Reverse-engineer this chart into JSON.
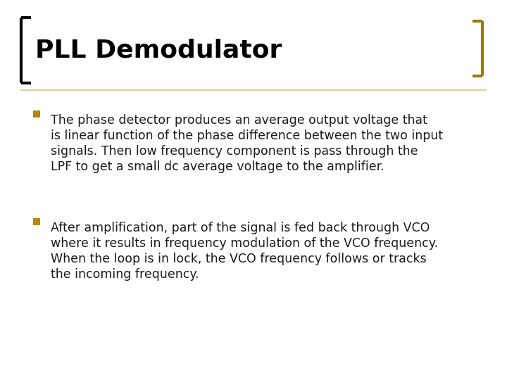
{
  "title": "PLL Demodulator",
  "title_fontsize": 26,
  "title_fontweight": "bold",
  "title_color": "#000000",
  "background_color": "#ffffff",
  "bullet_color": "#b8860b",
  "title_bracket_color_left": "#000000",
  "title_bracket_color_right": "#9a7b00",
  "separator_line_color": "#c8bc7a",
  "bullet1_lines": [
    "The phase detector produces an average output voltage that",
    "is linear function of the phase difference between the two input",
    "signals. Then low frequency component is pass through the",
    "LPF to get a small dc average voltage to the amplifier."
  ],
  "bullet2_lines": [
    "After amplification, part of the signal is fed back through VCO",
    "where it results in frequency modulation of the VCO frequency.",
    "When the loop is in lock, the VCO frequency follows or tracks",
    "the incoming frequency."
  ],
  "text_fontsize": 12.5,
  "text_color": "#1a1a1a",
  "figsize": [
    7.2,
    5.4
  ],
  "dpi": 100
}
